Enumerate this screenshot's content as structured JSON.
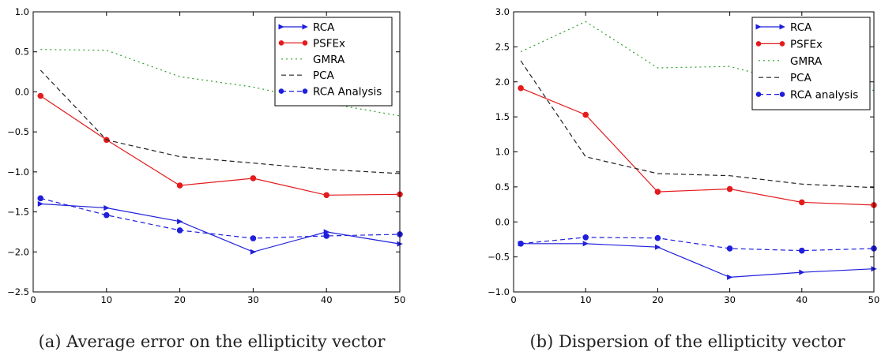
{
  "chart_data": [
    {
      "type": "line",
      "caption": "(a) Average error on the ellipticity vector",
      "title": "",
      "xlabel": "",
      "ylabel": "",
      "xlim": [
        0,
        50
      ],
      "ylim": [
        -2.5,
        1.0
      ],
      "xticks": [
        0,
        10,
        20,
        30,
        40,
        50
      ],
      "yticks": [
        1.0,
        0.5,
        0.0,
        -0.5,
        -1.0,
        -1.5,
        -2.0,
        -2.5
      ],
      "xtick_labels": [
        "0",
        "10",
        "20",
        "30",
        "40",
        "50"
      ],
      "ytick_labels": [
        "1.0",
        "0.5",
        "0.0",
        "−0.5",
        "−1.0",
        "−1.5",
        "−2.0",
        "−2.5"
      ],
      "grid": false,
      "legend_position": "top-right",
      "series": [
        {
          "name": "RCA",
          "color": "#1f1fdc",
          "style": "solid",
          "marker": "triangle-right",
          "x": [
            1,
            10,
            20,
            30,
            40,
            50
          ],
          "y": [
            -1.4,
            -1.45,
            -1.62,
            -2.0,
            -1.75,
            -1.9
          ]
        },
        {
          "name": "PSFEx",
          "color": "#e41a1c",
          "style": "solid",
          "marker": "circle",
          "x": [
            1,
            10,
            20,
            30,
            40,
            50
          ],
          "y": [
            -0.05,
            -0.6,
            -1.17,
            -1.08,
            -1.29,
            -1.28
          ]
        },
        {
          "name": "GMRA",
          "color": "#2ca02c",
          "style": "dashdot",
          "marker": "none",
          "x": [
            1,
            10,
            20,
            30,
            40,
            50
          ],
          "y": [
            0.53,
            0.52,
            0.19,
            0.06,
            -0.14,
            -0.3
          ]
        },
        {
          "name": "PCA",
          "color": "#222222",
          "style": "dashed",
          "marker": "none",
          "x": [
            1,
            10,
            20,
            30,
            40,
            50
          ],
          "y": [
            0.27,
            -0.6,
            -0.81,
            -0.89,
            -0.97,
            -1.02
          ]
        },
        {
          "name": "RCA Analysis",
          "color": "#1f1fdc",
          "style": "dashed",
          "marker": "circle",
          "x": [
            1,
            10,
            20,
            30,
            40,
            50
          ],
          "y": [
            -1.33,
            -1.54,
            -1.73,
            -1.83,
            -1.8,
            -1.78
          ]
        }
      ]
    },
    {
      "type": "line",
      "caption": "(b) Dispersion of the ellipticity vector",
      "title": "",
      "xlabel": "",
      "ylabel": "",
      "xlim": [
        0,
        50
      ],
      "ylim": [
        -1.0,
        3.0
      ],
      "xticks": [
        0,
        10,
        20,
        30,
        40,
        50
      ],
      "yticks": [
        3.0,
        2.5,
        2.0,
        1.5,
        1.0,
        0.5,
        0.0,
        -0.5,
        -1.0
      ],
      "xtick_labels": [
        "0",
        "10",
        "20",
        "30",
        "40",
        "50"
      ],
      "ytick_labels": [
        "3.0",
        "2.5",
        "2.0",
        "1.5",
        "1.0",
        "0.5",
        "0.0",
        "−0.5",
        "−1.0"
      ],
      "grid": false,
      "legend_position": "top-right",
      "series": [
        {
          "name": "RCA",
          "color": "#1f1fdc",
          "style": "solid",
          "marker": "triangle-right",
          "x": [
            1,
            10,
            20,
            30,
            40,
            50
          ],
          "y": [
            -0.31,
            -0.31,
            -0.36,
            -0.79,
            -0.72,
            -0.67
          ]
        },
        {
          "name": "PSFEx",
          "color": "#e41a1c",
          "style": "solid",
          "marker": "circle",
          "x": [
            1,
            10,
            20,
            30,
            40,
            50
          ],
          "y": [
            1.91,
            1.53,
            0.43,
            0.47,
            0.28,
            0.24
          ]
        },
        {
          "name": "GMRA",
          "color": "#2ca02c",
          "style": "dashdot",
          "marker": "none",
          "x": [
            1,
            10,
            20,
            30,
            40,
            50
          ],
          "y": [
            2.43,
            2.86,
            2.2,
            2.22,
            1.95,
            1.88
          ]
        },
        {
          "name": "PCA",
          "color": "#222222",
          "style": "dashed",
          "marker": "none",
          "x": [
            1,
            10,
            20,
            30,
            40,
            50
          ],
          "y": [
            2.3,
            0.93,
            0.69,
            0.66,
            0.54,
            0.49
          ]
        },
        {
          "name": "RCA analysis",
          "color": "#1f1fdc",
          "style": "dashed",
          "marker": "circle",
          "x": [
            1,
            10,
            20,
            30,
            40,
            50
          ],
          "y": [
            -0.31,
            -0.22,
            -0.23,
            -0.38,
            -0.41,
            -0.38
          ]
        }
      ]
    }
  ]
}
